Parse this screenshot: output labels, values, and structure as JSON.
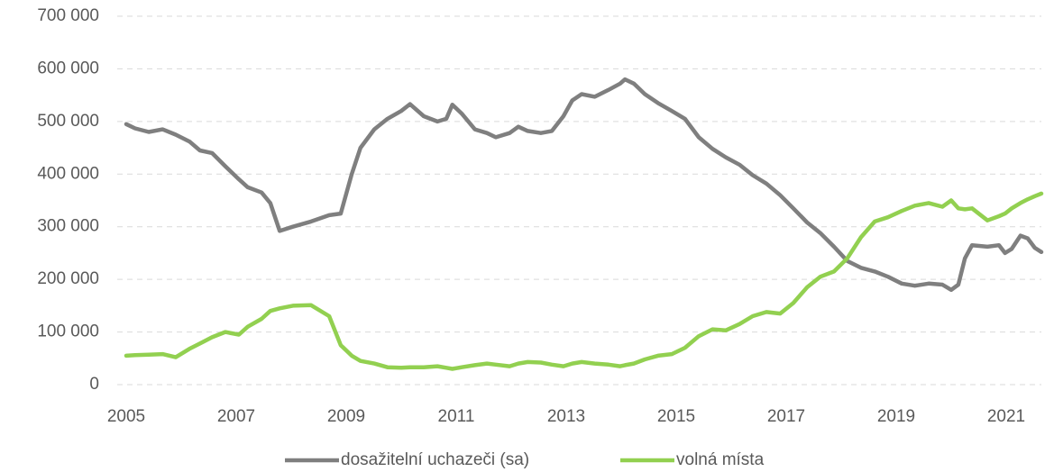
{
  "chart_data": {
    "type": "line",
    "x": [
      2005.0,
      2005.16,
      2005.41,
      2005.66,
      2005.9,
      2006.15,
      2006.34,
      2006.56,
      2006.8,
      2007.05,
      2007.21,
      2007.46,
      2007.62,
      2007.79,
      2008.03,
      2008.36,
      2008.69,
      2008.9,
      2009.1,
      2009.26,
      2009.51,
      2009.75,
      2010.0,
      2010.16,
      2010.41,
      2010.66,
      2010.82,
      2010.93,
      2011.1,
      2011.34,
      2011.56,
      2011.72,
      2011.97,
      2012.13,
      2012.3,
      2012.54,
      2012.74,
      2012.95,
      2013.11,
      2013.28,
      2013.52,
      2013.77,
      2013.98,
      2014.07,
      2014.23,
      2014.43,
      2014.67,
      2014.92,
      2015.16,
      2015.41,
      2015.66,
      2015.9,
      2016.15,
      2016.39,
      2016.64,
      2016.89,
      2017.13,
      2017.38,
      2017.62,
      2017.87,
      2018.11,
      2018.36,
      2018.61,
      2018.85,
      2019.1,
      2019.34,
      2019.59,
      2019.84,
      2020.0,
      2020.13,
      2020.25,
      2020.38,
      2020.66,
      2020.87,
      2020.98,
      2021.1,
      2021.26,
      2021.39,
      2021.52,
      2021.64
    ],
    "series": [
      {
        "name": "dosažitelní uchazeči (sa)",
        "color": "#7f7f7f",
        "values": [
          495000,
          487000,
          480000,
          485000,
          475000,
          462000,
          445000,
          440000,
          415000,
          390000,
          375000,
          365000,
          345000,
          292000,
          300000,
          310000,
          322000,
          325000,
          400000,
          450000,
          485000,
          505000,
          520000,
          533000,
          510000,
          500000,
          505000,
          532000,
          515000,
          485000,
          478000,
          470000,
          478000,
          490000,
          482000,
          478000,
          482000,
          510000,
          540000,
          552000,
          547000,
          560000,
          572000,
          580000,
          572000,
          552000,
          535000,
          520000,
          505000,
          470000,
          448000,
          432000,
          418000,
          398000,
          382000,
          360000,
          335000,
          308000,
          288000,
          262000,
          235000,
          222000,
          215000,
          205000,
          192000,
          188000,
          192000,
          190000,
          180000,
          190000,
          240000,
          265000,
          262000,
          265000,
          250000,
          258000,
          283000,
          278000,
          260000,
          252000
        ]
      },
      {
        "name": "volná místa",
        "color": "#92d050",
        "values": [
          55000,
          56000,
          57000,
          58000,
          52000,
          68000,
          78000,
          90000,
          100000,
          95000,
          110000,
          125000,
          140000,
          145000,
          150000,
          151000,
          130000,
          75000,
          55000,
          45000,
          40000,
          33000,
          32000,
          33000,
          33000,
          35000,
          32000,
          30000,
          33000,
          37000,
          40000,
          38000,
          35000,
          40000,
          43000,
          42000,
          38000,
          35000,
          40000,
          43000,
          40000,
          38000,
          35000,
          37000,
          40000,
          48000,
          55000,
          58000,
          70000,
          92000,
          105000,
          103000,
          115000,
          130000,
          138000,
          135000,
          155000,
          185000,
          205000,
          215000,
          240000,
          280000,
          310000,
          318000,
          330000,
          340000,
          345000,
          338000,
          350000,
          335000,
          333000,
          335000,
          312000,
          320000,
          325000,
          335000,
          345000,
          352000,
          358000,
          363000
        ]
      }
    ],
    "xlim": [
      2005,
      2021.64
    ],
    "xticks": [
      2005,
      2007,
      2009,
      2011,
      2013,
      2015,
      2017,
      2019,
      2021
    ],
    "ylim": [
      0,
      700000
    ],
    "yticks": [
      0,
      {
        "value": 100000,
        "label": "100 000"
      },
      {
        "value": 200000,
        "label": "200 000"
      },
      {
        "value": 300000,
        "label": "300 000"
      },
      {
        "value": 400000,
        "label": "400 000"
      },
      {
        "value": 500000,
        "label": "500 000"
      },
      {
        "value": 600000,
        "label": "600 000"
      },
      {
        "value": 700000,
        "label": "700 000"
      }
    ],
    "grid": true,
    "legend": "bottom"
  }
}
